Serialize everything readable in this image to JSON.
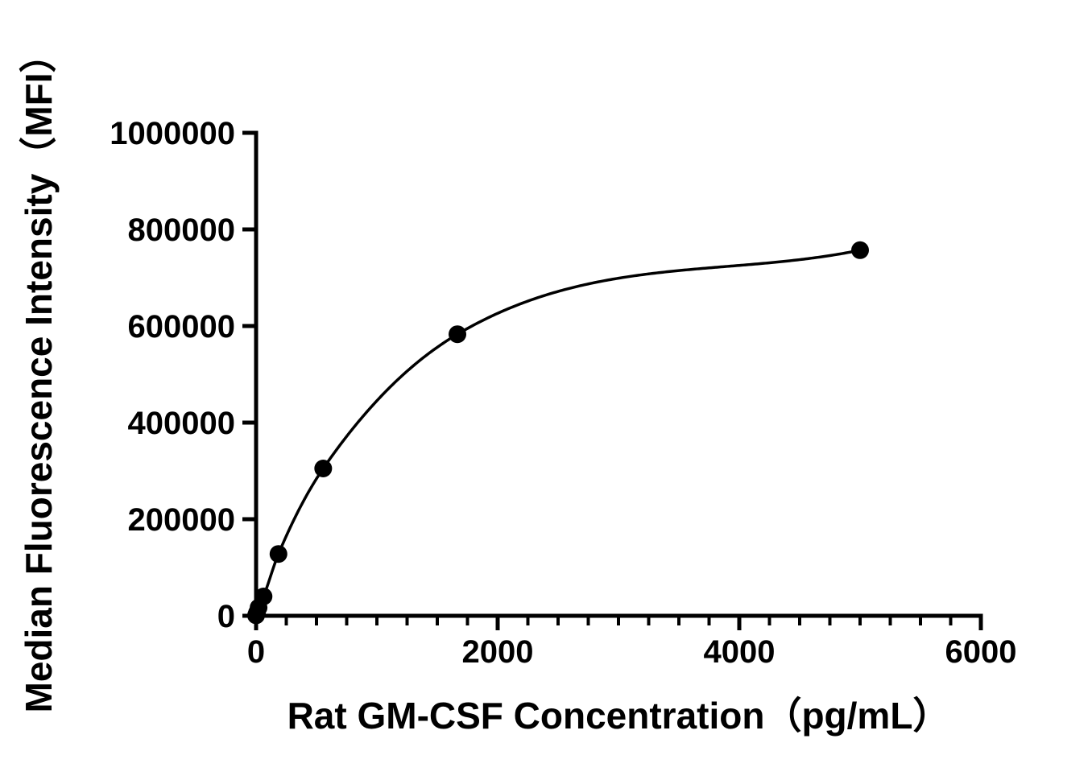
{
  "chart_data": {
    "type": "scatter",
    "title": "",
    "xlabel": "Rat GM-CSF Concentration（pg/mL）",
    "ylabel": "Median Fluorescence Intensity（MFI）",
    "x": [
      0,
      6.9,
      20.6,
      61.7,
      185.2,
      555.6,
      1666.7,
      5000
    ],
    "y": [
      800,
      6000,
      17000,
      40000,
      128000,
      305000,
      583000,
      757000
    ],
    "curve": "saturation binding fit through points",
    "xlim": [
      0,
      6000
    ],
    "ylim": [
      0,
      1000000
    ],
    "x_major_ticks": [
      0,
      2000,
      4000,
      6000
    ],
    "x_major_tick_labels": [
      "0",
      "2000",
      "4000",
      "6000"
    ],
    "x_minor_step": 250,
    "y_major_ticks": [
      0,
      200000,
      400000,
      600000,
      800000,
      1000000
    ],
    "y_major_tick_labels": [
      "0",
      "200000",
      "400000",
      "600000",
      "800000",
      "1000000"
    ],
    "legend": null,
    "grid": false,
    "marker_color": "#000000",
    "line_color": "#000000",
    "axis_color": "#000000",
    "background_color": "#ffffff"
  }
}
